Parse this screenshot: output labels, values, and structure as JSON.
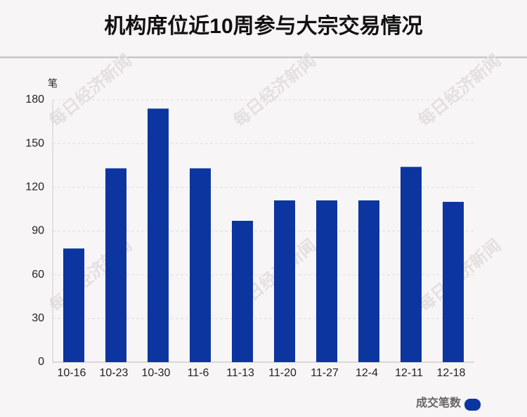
{
  "chart_data": {
    "type": "bar",
    "title": "机构席位近10周参与大宗交易情况",
    "y_label": "笔",
    "watermark": "每日经济新闻",
    "categories": [
      "10-16",
      "10-23",
      "10-30",
      "11-6",
      "11-13",
      "11-20",
      "11-27",
      "12-4",
      "12-11",
      "12-18"
    ],
    "series": [
      {
        "name": "成交笔数",
        "color": "#0d35a0",
        "values": [
          78,
          133,
          174,
          133,
          97,
          111,
          111,
          111,
          134,
          110
        ]
      }
    ],
    "ylim": [
      0,
      180
    ],
    "yticks": [
      0,
      30,
      60,
      90,
      120,
      150,
      180
    ],
    "grid": true,
    "legend": "bottom-right"
  }
}
